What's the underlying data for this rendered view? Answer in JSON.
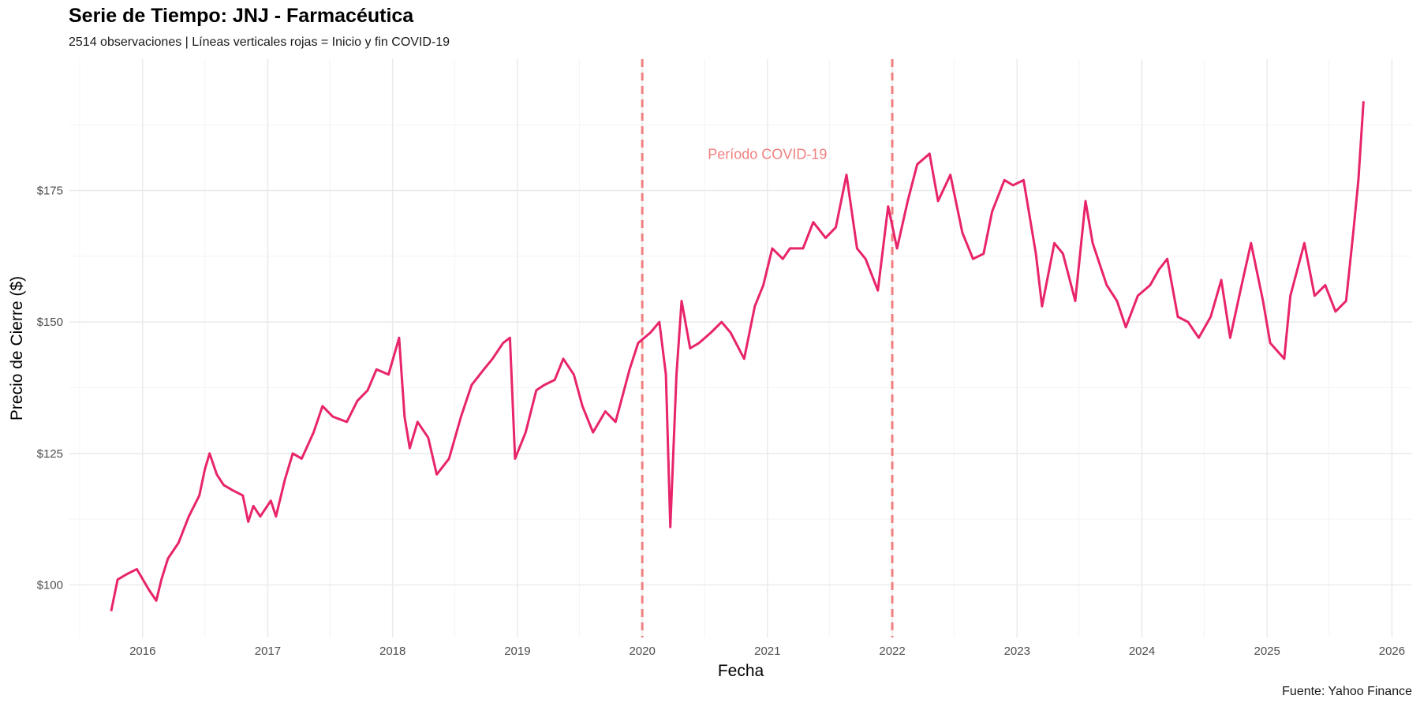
{
  "chart_data": {
    "type": "line",
    "title": "Serie de Tiempo: JNJ - Farmacéutica",
    "subtitle": "2514 observaciones | Líneas verticales rojas = Inicio y fin COVID-19",
    "caption": "Fuente: Yahoo Finance",
    "xlabel": "Fecha",
    "ylabel": "Precio de Cierre ($)",
    "x_type": "date",
    "xlim": [
      "2015-06-01",
      "2026-03-01"
    ],
    "ylim": [
      90,
      200
    ],
    "x_ticks": [
      "2016",
      "2017",
      "2018",
      "2019",
      "2020",
      "2021",
      "2022",
      "2023",
      "2024",
      "2025",
      "2026"
    ],
    "y_ticks": [
      100,
      125,
      150,
      175
    ],
    "y_tick_labels": [
      "$100",
      "$125",
      "$150",
      "$175"
    ],
    "grid": true,
    "line_color": "#e8246a",
    "vlines": [
      {
        "x": "2020-01-01",
        "color": "#f08080",
        "style": "dashed"
      },
      {
        "x": "2022-01-01",
        "color": "#f08080",
        "style": "dashed"
      }
    ],
    "annotation": {
      "text": "Período COVID-19",
      "x": "2021-01-01",
      "y": 181,
      "color": "#f08080"
    },
    "series": [
      {
        "x": [
          "2015-10-01",
          "2015-10-20",
          "2015-11-15",
          "2015-12-15",
          "2016-01-20",
          "2016-02-10",
          "2016-02-25",
          "2016-03-15",
          "2016-04-15",
          "2016-05-15",
          "2016-06-15",
          "2016-07-01",
          "2016-07-15",
          "2016-08-05",
          "2016-08-25",
          "2016-09-20",
          "2016-10-20",
          "2016-11-05",
          "2016-11-20",
          "2016-12-10",
          "2017-01-10",
          "2017-01-25",
          "2017-02-20",
          "2017-03-15",
          "2017-04-10",
          "2017-05-15",
          "2017-06-10",
          "2017-07-10",
          "2017-08-20",
          "2017-09-20",
          "2017-10-20",
          "2017-11-15",
          "2017-12-20",
          "2018-01-20",
          "2018-02-05",
          "2018-02-20",
          "2018-03-15",
          "2018-04-15",
          "2018-05-10",
          "2018-06-15",
          "2018-07-20",
          "2018-08-20",
          "2018-09-25",
          "2018-10-20",
          "2018-11-20",
          "2018-12-10",
          "2018-12-25",
          "2019-01-25",
          "2019-02-25",
          "2019-03-20",
          "2019-04-20",
          "2019-05-15",
          "2019-06-15",
          "2019-07-10",
          "2019-08-10",
          "2019-09-15",
          "2019-10-15",
          "2019-11-25",
          "2019-12-20",
          "2020-01-25",
          "2020-02-20",
          "2020-03-10",
          "2020-03-23",
          "2020-04-10",
          "2020-04-25",
          "2020-05-20",
          "2020-06-15",
          "2020-07-20",
          "2020-08-20",
          "2020-09-15",
          "2020-10-25",
          "2020-11-25",
          "2020-12-20",
          "2021-01-15",
          "2021-02-15",
          "2021-03-08",
          "2021-04-15",
          "2021-05-15",
          "2021-06-20",
          "2021-07-20",
          "2021-08-20",
          "2021-09-20",
          "2021-10-15",
          "2021-11-20",
          "2021-12-20",
          "2022-01-15",
          "2022-02-15",
          "2022-03-15",
          "2022-04-20",
          "2022-05-15",
          "2022-06-20",
          "2022-07-25",
          "2022-08-25",
          "2022-09-25",
          "2022-10-20",
          "2022-11-25",
          "2022-12-20",
          "2023-01-20",
          "2023-02-25",
          "2023-03-15",
          "2023-04-20",
          "2023-05-15",
          "2023-06-20",
          "2023-07-20",
          "2023-08-10",
          "2023-09-20",
          "2023-10-20",
          "2023-11-15",
          "2023-12-20",
          "2024-01-25",
          "2024-02-20",
          "2024-03-15",
          "2024-04-15",
          "2024-05-15",
          "2024-06-15",
          "2024-07-20",
          "2024-08-20",
          "2024-09-15",
          "2024-10-15",
          "2024-11-15",
          "2024-12-20",
          "2025-01-10",
          "2025-02-20",
          "2025-03-10",
          "2025-04-20",
          "2025-05-20",
          "2025-06-20",
          "2025-07-20",
          "2025-08-20",
          "2025-09-10",
          "2025-09-25",
          "2025-10-10"
        ],
        "values": [
          95,
          101,
          102,
          103,
          99,
          97,
          101,
          105,
          108,
          113,
          117,
          122,
          125,
          121,
          119,
          118,
          117,
          112,
          115,
          113,
          116,
          113,
          120,
          125,
          124,
          129,
          134,
          132,
          131,
          135,
          137,
          141,
          140,
          147,
          132,
          126,
          131,
          128,
          121,
          124,
          132,
          138,
          141,
          143,
          146,
          147,
          124,
          129,
          137,
          138,
          139,
          143,
          140,
          134,
          129,
          133,
          131,
          141,
          146,
          148,
          150,
          140,
          111,
          140,
          154,
          145,
          146,
          148,
          150,
          148,
          143,
          153,
          157,
          164,
          162,
          164,
          164,
          169,
          166,
          168,
          178,
          164,
          162,
          156,
          172,
          164,
          173,
          180,
          182,
          173,
          178,
          167,
          162,
          163,
          171,
          177,
          176,
          177,
          163,
          153,
          165,
          163,
          154,
          173,
          165,
          157,
          154,
          149,
          155,
          157,
          160,
          162,
          151,
          150,
          147,
          151,
          158,
          147,
          156,
          165,
          154,
          146,
          143,
          155,
          165,
          155,
          157,
          152,
          154,
          167,
          177,
          192
        ]
      }
    ]
  }
}
